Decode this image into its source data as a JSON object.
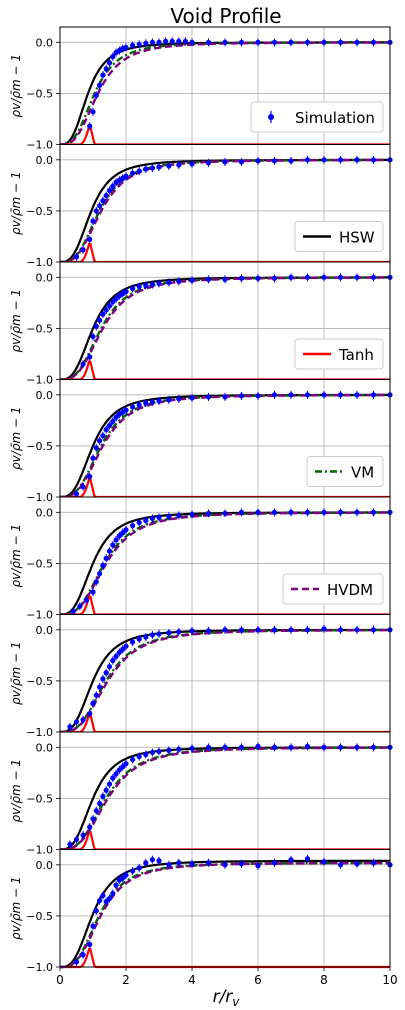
{
  "title": "Void Profile",
  "xlabel": "r/r",
  "xlabel_sub": "v",
  "ylabel": "ρv/ρ̄m − 1",
  "colors": {
    "simulation": "#0000ff",
    "hsw": "#000000",
    "tanh": "#ff0000",
    "vm": "#006400",
    "hvdm": "#800080",
    "grid": "#b0b0b0"
  },
  "legends": [
    "Simulation",
    "HSW",
    "Tanh",
    "VM",
    "HVDM"
  ],
  "chart_data": {
    "type": "line",
    "title": "Void Profile",
    "xlabel": "r/r_v",
    "ylabel": "ρ_v/ρ̄_m − 1",
    "xlim": [
      0,
      10
    ],
    "ylim": [
      -1.0,
      0.15
    ],
    "xticks": [
      "0",
      "2",
      "4",
      "6",
      "8",
      "10"
    ],
    "yticks": [
      "0.0",
      "−0.5",
      "−1.0"
    ],
    "grid": true,
    "legend_placement": "right",
    "panels": [
      {
        "legend": "Simulation",
        "series": [
          {
            "name": "Simulation",
            "type": "scatter",
            "x": [
              0.9,
              1.0,
              1.1,
              1.2,
              1.3,
              1.4,
              1.5,
              1.6,
              1.7,
              1.8,
              1.9,
              2.0,
              2.2,
              2.4,
              2.6,
              2.8,
              3.0,
              3.2,
              3.4,
              3.6,
              3.8,
              4.0,
              4.5,
              5.0,
              5.5,
              6.0,
              6.5,
              7.0,
              7.5,
              8.0,
              8.5,
              9.0,
              9.5,
              10.0
            ],
            "y": [
              -0.82,
              -0.68,
              -0.52,
              -0.42,
              -0.32,
              -0.26,
              -0.2,
              -0.14,
              -0.1,
              -0.08,
              -0.06,
              -0.05,
              -0.03,
              -0.02,
              -0.01,
              0.0,
              0.0,
              0.01,
              0.01,
              0.01,
              0.01,
              0.0,
              0.0,
              0.0,
              0.0,
              0.0,
              0.0,
              0.0,
              0.0,
              0.0,
              0.0,
              0.0,
              0.0,
              0.0
            ]
          },
          {
            "name": "HSW",
            "type": "line",
            "params": [
              0.85,
              0.55,
              1.0
            ]
          },
          {
            "name": "Tanh",
            "type": "spike"
          },
          {
            "name": "VM",
            "type": "line",
            "params": [
              1.05,
              0.55,
              1.0
            ]
          },
          {
            "name": "HVDM",
            "type": "line",
            "params": [
              1.15,
              0.55,
              1.0
            ]
          }
        ]
      },
      {
        "legend": "HSW",
        "series": [
          {
            "name": "Simulation",
            "type": "scatter",
            "x": [
              0.5,
              0.7,
              0.9,
              1.0,
              1.1,
              1.2,
              1.3,
              1.4,
              1.5,
              1.6,
              1.7,
              1.8,
              1.9,
              2.0,
              2.2,
              2.4,
              2.6,
              2.8,
              3.0,
              3.3,
              3.6,
              4.0,
              4.5,
              5.0,
              5.5,
              6.0,
              6.5,
              7.0,
              7.5,
              8.0,
              8.5,
              9.0,
              9.5,
              10.0
            ],
            "y": [
              -0.95,
              -0.88,
              -0.78,
              -0.6,
              -0.5,
              -0.45,
              -0.4,
              -0.35,
              -0.3,
              -0.26,
              -0.22,
              -0.2,
              -0.18,
              -0.16,
              -0.13,
              -0.11,
              -0.09,
              -0.08,
              -0.07,
              -0.06,
              -0.05,
              -0.04,
              -0.03,
              -0.02,
              -0.02,
              -0.01,
              -0.01,
              -0.01,
              0.0,
              0.0,
              0.0,
              0.0,
              0.0,
              0.0
            ]
          },
          {
            "name": "HSW",
            "type": "line",
            "params": [
              0.95,
              0.55,
              1.0
            ]
          },
          {
            "name": "Tanh",
            "type": "spike"
          },
          {
            "name": "VM",
            "type": "line",
            "params": [
              1.2,
              0.55,
              1.0
            ]
          },
          {
            "name": "HVDM",
            "type": "line",
            "params": [
              1.25,
              0.55,
              1.0
            ]
          }
        ]
      },
      {
        "legend": "Tanh",
        "series": [
          {
            "name": "Simulation",
            "type": "scatter",
            "x": [
              0.7,
              0.9,
              1.0,
              1.1,
              1.2,
              1.3,
              1.4,
              1.5,
              1.6,
              1.7,
              1.8,
              1.9,
              2.0,
              2.2,
              2.4,
              2.6,
              2.8,
              3.0,
              3.3,
              3.6,
              4.0,
              4.5,
              5.0,
              5.5,
              6.0,
              6.5,
              7.0,
              7.5,
              8.0,
              8.5,
              9.0,
              9.5,
              10.0
            ],
            "y": [
              -0.85,
              -0.78,
              -0.58,
              -0.48,
              -0.42,
              -0.36,
              -0.32,
              -0.28,
              -0.24,
              -0.21,
              -0.18,
              -0.16,
              -0.14,
              -0.11,
              -0.09,
              -0.08,
              -0.07,
              -0.06,
              -0.05,
              -0.04,
              -0.03,
              -0.02,
              -0.02,
              -0.01,
              -0.01,
              -0.01,
              0.0,
              0.0,
              0.0,
              0.0,
              0.0,
              0.0,
              0.0
            ]
          },
          {
            "name": "HSW",
            "type": "line",
            "params": [
              1.0,
              0.55,
              1.0
            ]
          },
          {
            "name": "Tanh",
            "type": "spike"
          },
          {
            "name": "VM",
            "type": "line",
            "params": [
              1.25,
              0.55,
              1.0
            ]
          },
          {
            "name": "HVDM",
            "type": "line",
            "params": [
              1.3,
              0.55,
              1.0
            ]
          }
        ]
      },
      {
        "legend": "VM",
        "series": [
          {
            "name": "Simulation",
            "type": "scatter",
            "x": [
              0.5,
              0.7,
              0.9,
              1.0,
              1.1,
              1.2,
              1.3,
              1.4,
              1.5,
              1.6,
              1.7,
              1.8,
              1.9,
              2.0,
              2.2,
              2.4,
              2.6,
              2.8,
              3.0,
              3.3,
              3.6,
              4.0,
              4.5,
              5.0,
              5.5,
              6.0,
              6.5,
              7.0,
              7.5,
              8.0,
              8.5,
              9.0,
              9.5,
              10.0
            ],
            "y": [
              -0.97,
              -0.9,
              -0.8,
              -0.62,
              -0.52,
              -0.45,
              -0.4,
              -0.34,
              -0.3,
              -0.26,
              -0.22,
              -0.19,
              -0.17,
              -0.15,
              -0.12,
              -0.1,
              -0.08,
              -0.07,
              -0.06,
              -0.05,
              -0.04,
              -0.03,
              -0.02,
              -0.02,
              -0.01,
              -0.01,
              0.0,
              0.0,
              0.0,
              0.0,
              0.0,
              0.0,
              0.0,
              0.0
            ]
          },
          {
            "name": "HSW",
            "type": "line",
            "params": [
              1.0,
              0.55,
              1.0
            ]
          },
          {
            "name": "Tanh",
            "type": "spike"
          },
          {
            "name": "VM",
            "type": "line",
            "params": [
              1.25,
              0.55,
              1.0
            ]
          },
          {
            "name": "HVDM",
            "type": "line",
            "params": [
              1.3,
              0.55,
              1.0
            ]
          }
        ]
      },
      {
        "legend": "HVDM",
        "series": [
          {
            "name": "Simulation",
            "type": "scatter",
            "x": [
              0.4,
              0.6,
              0.8,
              1.0,
              1.1,
              1.2,
              1.3,
              1.4,
              1.5,
              1.6,
              1.7,
              1.8,
              1.9,
              2.0,
              2.2,
              2.4,
              2.6,
              2.8,
              3.0,
              3.3,
              3.6,
              4.0,
              4.5,
              5.0,
              5.5,
              6.0,
              6.5,
              7.0,
              7.5,
              8.0,
              8.5,
              9.0,
              9.5,
              10.0
            ],
            "y": [
              -0.97,
              -0.92,
              -0.86,
              -0.78,
              -0.68,
              -0.6,
              -0.52,
              -0.45,
              -0.38,
              -0.32,
              -0.27,
              -0.23,
              -0.2,
              -0.17,
              -0.13,
              -0.1,
              -0.08,
              -0.06,
              -0.05,
              -0.04,
              -0.03,
              -0.02,
              -0.01,
              -0.01,
              0.0,
              0.0,
              0.0,
              0.0,
              0.0,
              0.0,
              0.0,
              0.0,
              0.0,
              0.0
            ]
          },
          {
            "name": "HSW",
            "type": "line",
            "params": [
              1.0,
              0.55,
              1.0
            ]
          },
          {
            "name": "Tanh",
            "type": "spike"
          },
          {
            "name": "VM",
            "type": "line",
            "params": [
              1.35,
              0.5,
              1.0
            ]
          },
          {
            "name": "HVDM",
            "type": "line",
            "params": [
              1.4,
              0.5,
              1.0
            ]
          }
        ]
      },
      {
        "legend": "",
        "series": [
          {
            "name": "Simulation",
            "type": "scatter",
            "x": [
              0.3,
              0.5,
              0.7,
              0.9,
              1.0,
              1.1,
              1.2,
              1.3,
              1.4,
              1.5,
              1.6,
              1.7,
              1.8,
              1.9,
              2.0,
              2.2,
              2.4,
              2.6,
              2.8,
              3.0,
              3.3,
              3.6,
              4.0,
              4.5,
              5.0,
              5.5,
              6.0,
              6.5,
              7.0,
              7.5,
              8.0,
              8.5,
              9.0,
              9.5,
              10.0
            ],
            "y": [
              -0.95,
              -0.9,
              -0.88,
              -0.82,
              -0.72,
              -0.64,
              -0.56,
              -0.48,
              -0.42,
              -0.36,
              -0.3,
              -0.26,
              -0.22,
              -0.19,
              -0.16,
              -0.12,
              -0.09,
              -0.07,
              -0.05,
              -0.04,
              -0.03,
              -0.02,
              -0.01,
              -0.01,
              0.0,
              0.0,
              0.0,
              0.0,
              0.0,
              0.0,
              0.01,
              0.0,
              0.0,
              0.0,
              0.0
            ]
          },
          {
            "name": "HSW",
            "type": "line",
            "params": [
              1.0,
              0.55,
              1.0
            ]
          },
          {
            "name": "Tanh",
            "type": "spike"
          },
          {
            "name": "VM",
            "type": "line",
            "params": [
              1.4,
              0.5,
              1.0
            ]
          },
          {
            "name": "HVDM",
            "type": "line",
            "params": [
              1.45,
              0.5,
              1.0
            ]
          }
        ]
      },
      {
        "legend": "",
        "series": [
          {
            "name": "Simulation",
            "type": "scatter",
            "x": [
              0.3,
              0.5,
              0.7,
              0.9,
              1.0,
              1.1,
              1.2,
              1.3,
              1.4,
              1.5,
              1.6,
              1.7,
              1.8,
              1.9,
              2.0,
              2.2,
              2.4,
              2.6,
              2.8,
              3.0,
              3.3,
              3.6,
              4.0,
              4.5,
              5.0,
              5.5,
              6.0,
              6.5,
              7.0,
              7.5,
              8.0,
              8.5,
              9.0,
              9.5,
              10.0
            ],
            "y": [
              -0.95,
              -0.9,
              -0.86,
              -0.78,
              -0.7,
              -0.62,
              -0.55,
              -0.48,
              -0.42,
              -0.36,
              -0.3,
              -0.26,
              -0.22,
              -0.19,
              -0.16,
              -0.12,
              -0.09,
              -0.07,
              -0.05,
              -0.04,
              -0.03,
              -0.02,
              -0.01,
              0.0,
              0.0,
              0.0,
              0.01,
              0.0,
              0.0,
              0.01,
              0.0,
              0.0,
              0.0,
              0.0,
              0.0
            ]
          },
          {
            "name": "HSW",
            "type": "line",
            "params": [
              1.0,
              0.55,
              1.0
            ]
          },
          {
            "name": "Tanh",
            "type": "spike"
          },
          {
            "name": "VM",
            "type": "line",
            "params": [
              1.4,
              0.5,
              1.0
            ]
          },
          {
            "name": "HVDM",
            "type": "line",
            "params": [
              1.45,
              0.5,
              1.0
            ]
          }
        ]
      },
      {
        "legend": "",
        "series": [
          {
            "name": "Simulation",
            "type": "scatter",
            "x": [
              0.5,
              0.7,
              0.9,
              1.0,
              1.1,
              1.2,
              1.3,
              1.4,
              1.5,
              1.6,
              1.7,
              1.8,
              1.9,
              2.0,
              2.2,
              2.4,
              2.6,
              2.8,
              3.0,
              3.3,
              3.6,
              4.0,
              4.5,
              5.0,
              5.5,
              6.0,
              6.5,
              7.0,
              7.5,
              8.0,
              8.5,
              9.0,
              9.5,
              10.0
            ],
            "y": [
              -0.95,
              -0.88,
              -0.78,
              -0.6,
              -0.45,
              -0.35,
              -0.3,
              -0.36,
              -0.33,
              -0.28,
              -0.2,
              -0.15,
              -0.13,
              -0.1,
              -0.06,
              -0.03,
              0.02,
              0.05,
              0.04,
              0.0,
              0.02,
              0.01,
              0.02,
              0.0,
              0.01,
              -0.01,
              0.02,
              0.05,
              0.06,
              0.03,
              0.0,
              0.01,
              0.02,
              0.0
            ]
          },
          {
            "name": "HSW",
            "type": "line",
            "params": [
              1.0,
              0.55,
              1.04
            ]
          },
          {
            "name": "Tanh",
            "type": "spike"
          },
          {
            "name": "VM",
            "type": "line",
            "params": [
              1.2,
              0.55,
              1.02
            ]
          },
          {
            "name": "HVDM",
            "type": "line",
            "params": [
              1.25,
              0.55,
              1.02
            ]
          }
        ]
      }
    ]
  }
}
